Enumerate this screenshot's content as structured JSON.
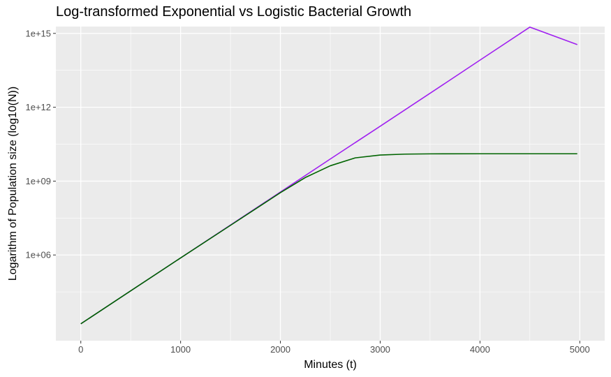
{
  "chart_data": {
    "type": "line",
    "title": "Log-transformed Exponential vs Logistic Bacterial Growth",
    "xlabel": "Minutes (t)",
    "ylabel": "Logarithm of Population size (log10(N))",
    "y_scale": "log10",
    "xlim": [
      -250,
      5250
    ],
    "ylim": [
      330.0,
      1900000000000000.0
    ],
    "x_ticks": [
      0,
      1000,
      2000,
      3000,
      4000,
      5000
    ],
    "x_tick_labels": [
      "0",
      "1000",
      "2000",
      "3000",
      "4000",
      "5000"
    ],
    "y_ticks": [
      1000000.0,
      1000000000.0,
      1000000000000.0,
      1000000000000000.0
    ],
    "y_tick_labels": [
      "1e+06",
      "1e+09",
      "1e+12",
      "1e+15"
    ],
    "grid": true,
    "legend": "none",
    "series": [
      {
        "color": "#a020f0",
        "x": [
          0,
          500,
          1000,
          1500,
          2000,
          2500,
          3000,
          3500,
          4000,
          4500,
          4975
        ],
        "y": [
          1600.0,
          35000.0,
          760000.0,
          16500000.0,
          360000000.0,
          7900000000.0,
          170000000000.0,
          3700000000000.0,
          82000000000000.0,
          1800000000000000.0,
          350000000000000.0
        ]
      },
      {
        "color": "#006400",
        "x": [
          0,
          500,
          1000,
          1500,
          2000,
          2250,
          2500,
          2750,
          3000,
          3250,
          3500,
          4000,
          4500,
          4975
        ],
        "y": [
          1600.0,
          35000.0,
          760000.0,
          16000000.0,
          340000000.0,
          1400000000.0,
          4200000000.0,
          8800000000.0,
          11500000000.0,
          12500000000.0,
          12800000000.0,
          12900000000.0,
          12900000000.0,
          12900000000.0
        ]
      }
    ]
  }
}
